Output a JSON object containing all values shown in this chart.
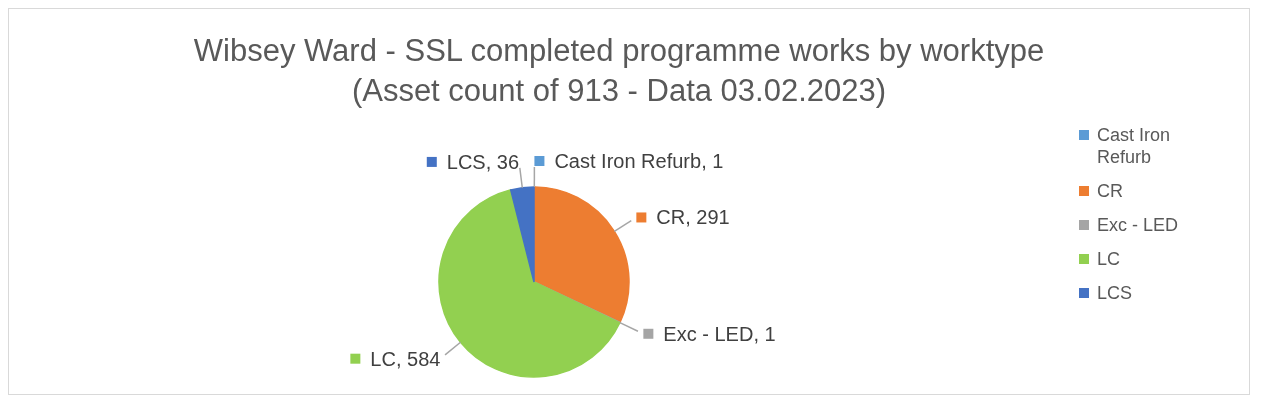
{
  "chart_data": {
    "type": "pie",
    "title": "Wibsey Ward - SSL completed programme works by worktype",
    "subtitle": "(Asset count of 913 - Data 03.02.2023)",
    "categories": [
      "Cast Iron Refurb",
      "CR",
      "Exc - LED",
      "LC",
      "LCS"
    ],
    "values": [
      1,
      291,
      1,
      584,
      36
    ],
    "value_labels": [
      ", 1",
      ", 291",
      ", 1",
      ", 584",
      ", 36"
    ],
    "colors": [
      "#5b9bd5",
      "#ed7d31",
      "#a5a5a5",
      "#92d050",
      "#4472c4"
    ],
    "legend": "right"
  }
}
